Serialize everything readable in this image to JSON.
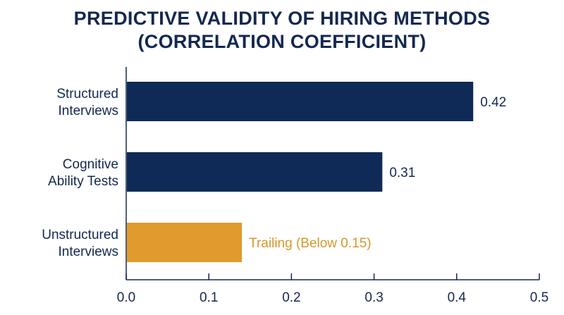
{
  "chart_data": {
    "type": "bar",
    "orientation": "horizontal",
    "title_lines": [
      "PREDICTIVE VALIDITY OF HIRING METHODS",
      "(CORRELATION COEFFICIENT)"
    ],
    "xlabel": "",
    "ylabel": "",
    "xlim": [
      0.0,
      0.5
    ],
    "x_ticks": [
      "0.0",
      "0.1",
      "0.2",
      "0.3",
      "0.4",
      "0.5"
    ],
    "grid": false,
    "categories": [
      {
        "label_lines": [
          "Structured",
          "Interviews"
        ],
        "value": 0.42,
        "value_label": "0.42",
        "color": "#0f2a56",
        "label_color": "#142850"
      },
      {
        "label_lines": [
          "Cognitive",
          "Ability Tests"
        ],
        "value": 0.31,
        "value_label": "0.31",
        "color": "#0f2a56",
        "label_color": "#142850"
      },
      {
        "label_lines": [
          "Unstructured",
          "Interviews"
        ],
        "value": 0.14,
        "value_label": "Trailing (Below 0.15)",
        "color": "#e09a2d",
        "label_color": "#d8962c"
      }
    ],
    "colors": {
      "primary": "#0f2a56",
      "highlight": "#e09a2d",
      "text": "#142850",
      "axis": "#142850"
    }
  }
}
